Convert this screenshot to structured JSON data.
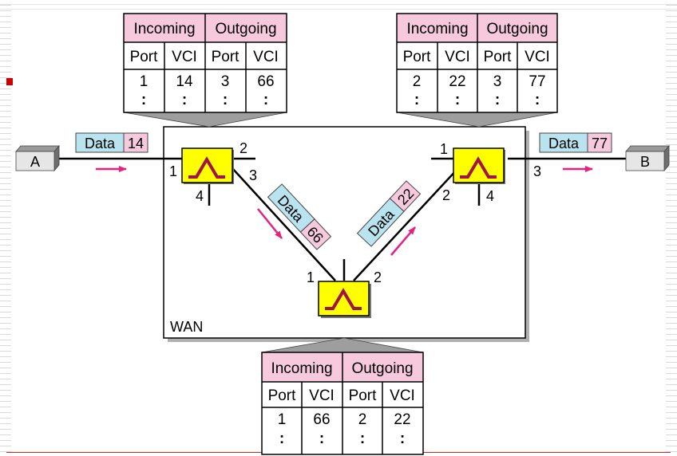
{
  "wan_label": "WAN",
  "hosts": {
    "a": "A",
    "b": "B"
  },
  "colors": {
    "table_header": "#f6c9dc",
    "packet_data": "#b9e3ee",
    "packet_vci": "#f6c9dc",
    "switch": "#ffff00",
    "arrow": "#e8207f",
    "switch_symbol": "#a0144a"
  },
  "packets": {
    "a_side": {
      "label": "Data",
      "vci": "14"
    },
    "s1_s3": {
      "label": "Data",
      "vci": "66"
    },
    "s3_s2": {
      "label": "Data",
      "vci": "22"
    },
    "b_side": {
      "label": "Data",
      "vci": "77"
    }
  },
  "ports": {
    "s1": {
      "p1": "1",
      "p2": "2",
      "p3": "3",
      "p4": "4"
    },
    "s2": {
      "p1": "1",
      "p2": "2",
      "p3": "3",
      "p4": "4"
    },
    "s3": {
      "p1": "1",
      "p2": "2"
    }
  },
  "tables": {
    "t1": {
      "incoming": "Incoming",
      "outgoing": "Outgoing",
      "columns": [
        "Port",
        "VCI",
        "Port",
        "VCI"
      ],
      "row": [
        "1",
        "14",
        "3",
        "66"
      ],
      "more": ":"
    },
    "t2": {
      "incoming": "Incoming",
      "outgoing": "Outgoing",
      "columns": [
        "Port",
        "VCI",
        "Port",
        "VCI"
      ],
      "row": [
        "2",
        "22",
        "3",
        "77"
      ],
      "more": ":"
    },
    "t3": {
      "incoming": "Incoming",
      "outgoing": "Outgoing",
      "columns": [
        "Port",
        "VCI",
        "Port",
        "VCI"
      ],
      "row": [
        "1",
        "66",
        "2",
        "22"
      ],
      "more": ":"
    }
  }
}
